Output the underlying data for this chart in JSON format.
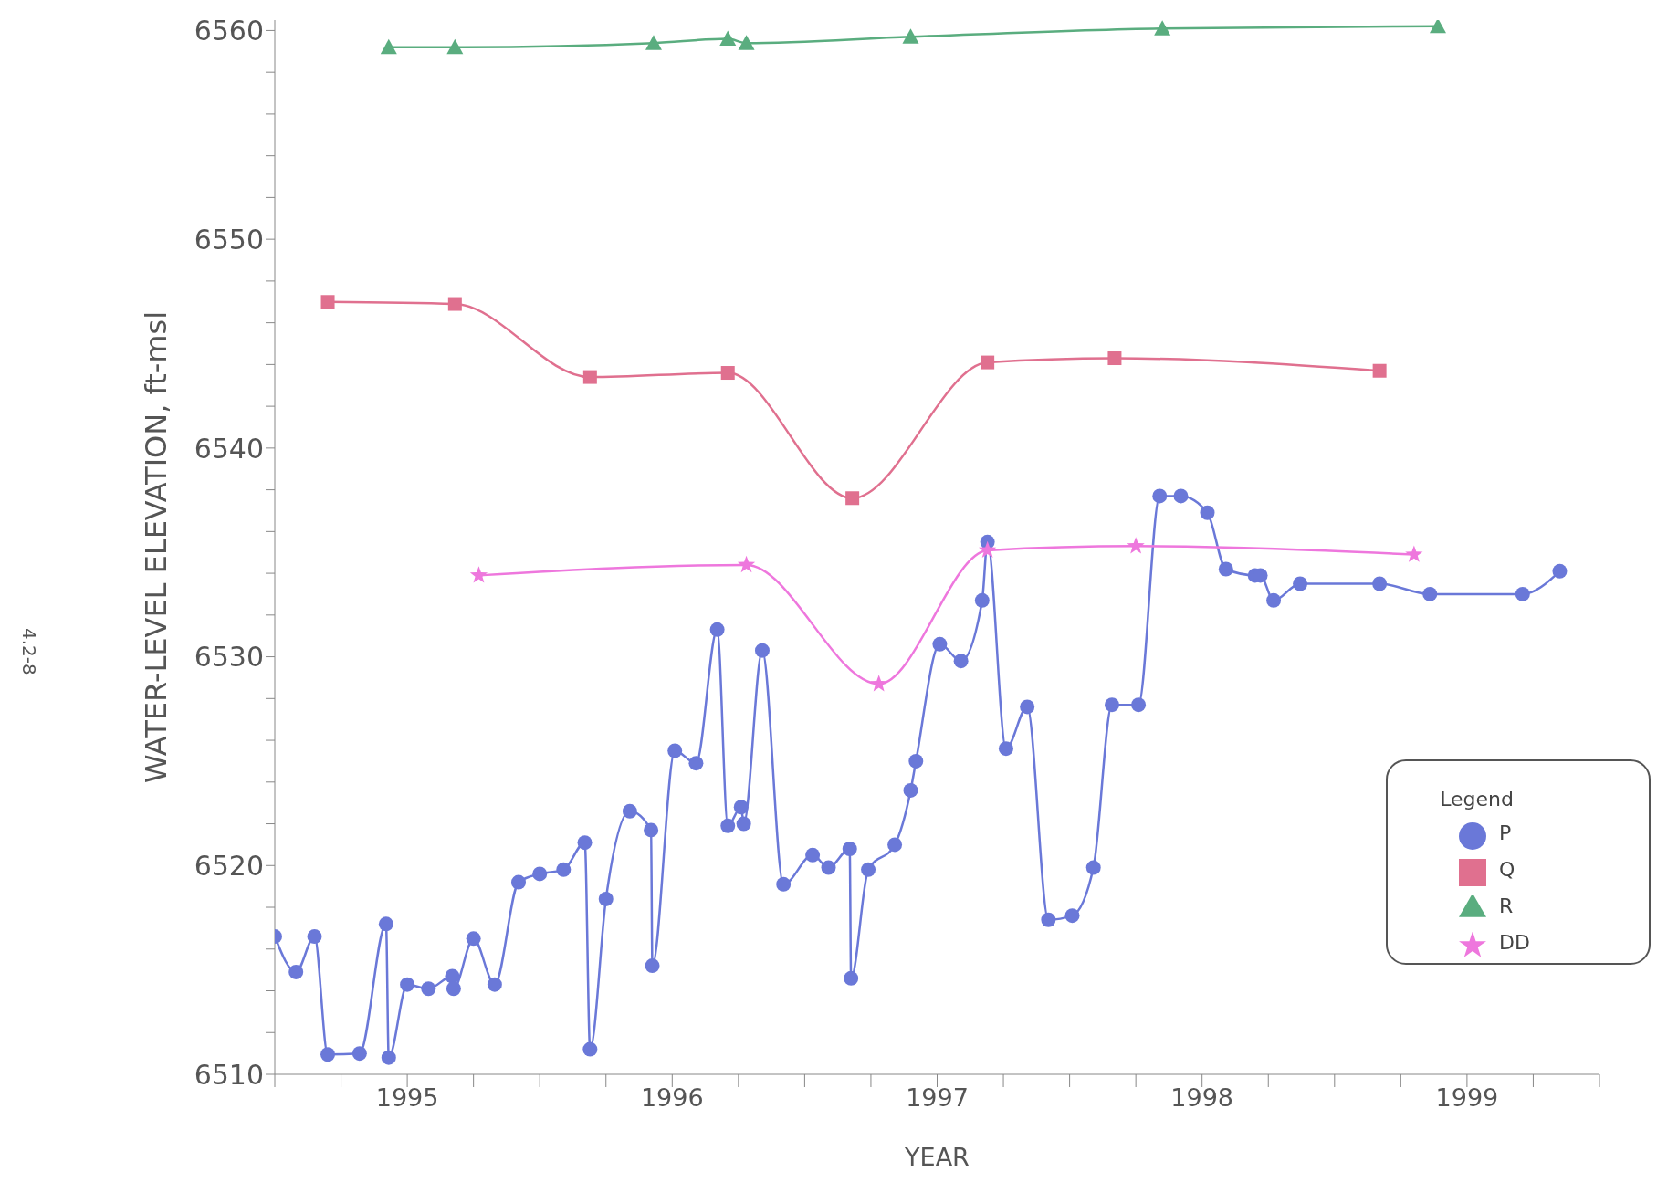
{
  "chart_data": {
    "type": "line",
    "xlabel": "YEAR",
    "ylabel": "WATER-LEVEL ELEVATION, ft-msl",
    "legend_title": "Legend",
    "legend": "bottom right",
    "grid": false,
    "annotations": [
      "4.2-8"
    ],
    "xlim": [
      1995,
      2000
    ],
    "xticks": [
      {
        "value": 1995,
        "label": null
      },
      {
        "value": 1995.25,
        "label": null
      },
      {
        "value": 1995.5,
        "label": "1995"
      },
      {
        "value": 1995.75,
        "label": null
      },
      {
        "value": 1996,
        "label": null
      },
      {
        "value": 1996.25,
        "label": null
      },
      {
        "value": 1996.5,
        "label": "1996"
      },
      {
        "value": 1996.75,
        "label": null
      },
      {
        "value": 1997,
        "label": null
      },
      {
        "value": 1997.25,
        "label": null
      },
      {
        "value": 1997.5,
        "label": "1997"
      },
      {
        "value": 1997.75,
        "label": null
      },
      {
        "value": 1998,
        "label": null
      },
      {
        "value": 1998.25,
        "label": null
      },
      {
        "value": 1998.5,
        "label": "1998"
      },
      {
        "value": 1998.75,
        "label": null
      },
      {
        "value": 1999,
        "label": null
      },
      {
        "value": 1999.25,
        "label": null
      },
      {
        "value": 1999.5,
        "label": "1999"
      },
      {
        "value": 1999.75,
        "label": null
      },
      {
        "value": 2000,
        "label": null
      }
    ],
    "ylim": [
      6510,
      6560.5
    ],
    "yticks": [
      6510,
      {
        "value": 6512,
        "label": null
      },
      {
        "value": 6514,
        "label": null
      },
      {
        "value": 6516,
        "label": null
      },
      {
        "value": 6518,
        "label": null
      },
      6520,
      {
        "value": 6522,
        "label": null
      },
      {
        "value": 6524,
        "label": null
      },
      {
        "value": 6526,
        "label": null
      },
      {
        "value": 6528,
        "label": null
      },
      6530,
      {
        "value": 6532,
        "label": null
      },
      {
        "value": 6534,
        "label": null
      },
      {
        "value": 6536,
        "label": null
      },
      {
        "value": 6538,
        "label": null
      },
      6540,
      {
        "value": 6542,
        "label": null
      },
      {
        "value": 6544,
        "label": null
      },
      {
        "value": 6546,
        "label": null
      },
      {
        "value": 6548,
        "label": null
      },
      6550,
      {
        "value": 6552,
        "label": null
      },
      {
        "value": 6554,
        "label": null
      },
      {
        "value": 6556,
        "label": null
      },
      {
        "value": 6558,
        "label": null
      },
      6560
    ],
    "series": [
      {
        "name": "P",
        "color": "#6a78d8",
        "marker": "circle",
        "x": [
          1995.0,
          1995.08,
          1995.15,
          1995.2,
          1995.32,
          1995.42,
          1995.43,
          1995.5,
          1995.58,
          1995.67,
          1995.675,
          1995.75,
          1995.83,
          1995.92,
          1996.0,
          1996.09,
          1996.17,
          1996.19,
          1996.25,
          1996.34,
          1996.42,
          1996.425,
          1996.51,
          1996.59,
          1996.67,
          1996.71,
          1996.76,
          1996.77,
          1996.84,
          1996.92,
          1997.03,
          1997.09,
          1997.17,
          1997.175,
          1997.24,
          1997.34,
          1997.4,
          1997.42,
          1997.51,
          1997.59,
          1997.67,
          1997.69,
          1997.76,
          1997.84,
          1997.92,
          1998.01,
          1998.09,
          1998.16,
          1998.26,
          1998.34,
          1998.42,
          1998.52,
          1998.59,
          1998.7,
          1998.72,
          1998.77,
          1998.87,
          1999.17,
          1999.36,
          1999.71,
          1999.85
        ],
        "values": [
          6516.6,
          6514.9,
          6516.6,
          6510.95,
          6511.0,
          6517.2,
          6510.8,
          6514.3,
          6514.1,
          6514.7,
          6514.1,
          6516.5,
          6514.3,
          6519.2,
          6519.6,
          6519.8,
          6521.1,
          6511.2,
          6518.4,
          6522.6,
          6521.7,
          6515.2,
          6525.5,
          6524.9,
          6531.3,
          6521.9,
          6522.8,
          6522.0,
          6530.3,
          6519.1,
          6520.5,
          6519.9,
          6520.8,
          6514.6,
          6519.8,
          6521.0,
          6523.6,
          6525.0,
          6530.6,
          6529.8,
          6532.7,
          6535.5,
          6525.6,
          6527.6,
          6517.4,
          6517.6,
          6519.9,
          6527.7,
          6527.7,
          6537.7,
          6537.7,
          6536.9,
          6534.2,
          6533.9,
          6533.9,
          6532.7,
          6533.5,
          6533.5,
          6533.0,
          6533.0,
          6534.1
        ]
      },
      {
        "name": "Q",
        "color": "#e0708f",
        "marker": "square",
        "x": [
          1995.2,
          1995.68,
          1996.19,
          1996.71,
          1997.18,
          1997.69,
          1998.17,
          1999.17
        ],
        "values": [
          6547.0,
          6546.9,
          6543.4,
          6543.6,
          6537.6,
          6544.1,
          6544.3,
          6543.7
        ]
      },
      {
        "name": "R",
        "color": "#5aad7f",
        "marker": "triangle",
        "x": [
          1995.43,
          1995.68,
          1996.43,
          1996.71,
          1996.78,
          1997.4,
          1998.35,
          1999.39
        ],
        "values": [
          6559.2,
          6559.2,
          6559.4,
          6559.6,
          6559.4,
          6559.7,
          6560.1,
          6560.2
        ]
      },
      {
        "name": "DD",
        "color": "#ee77dd",
        "marker": "star",
        "x": [
          1995.77,
          1996.78,
          1997.28,
          1997.69,
          1998.25,
          1999.3
        ],
        "values": [
          6533.9,
          6534.4,
          6528.7,
          6535.1,
          6535.3,
          6534.9
        ]
      }
    ]
  }
}
